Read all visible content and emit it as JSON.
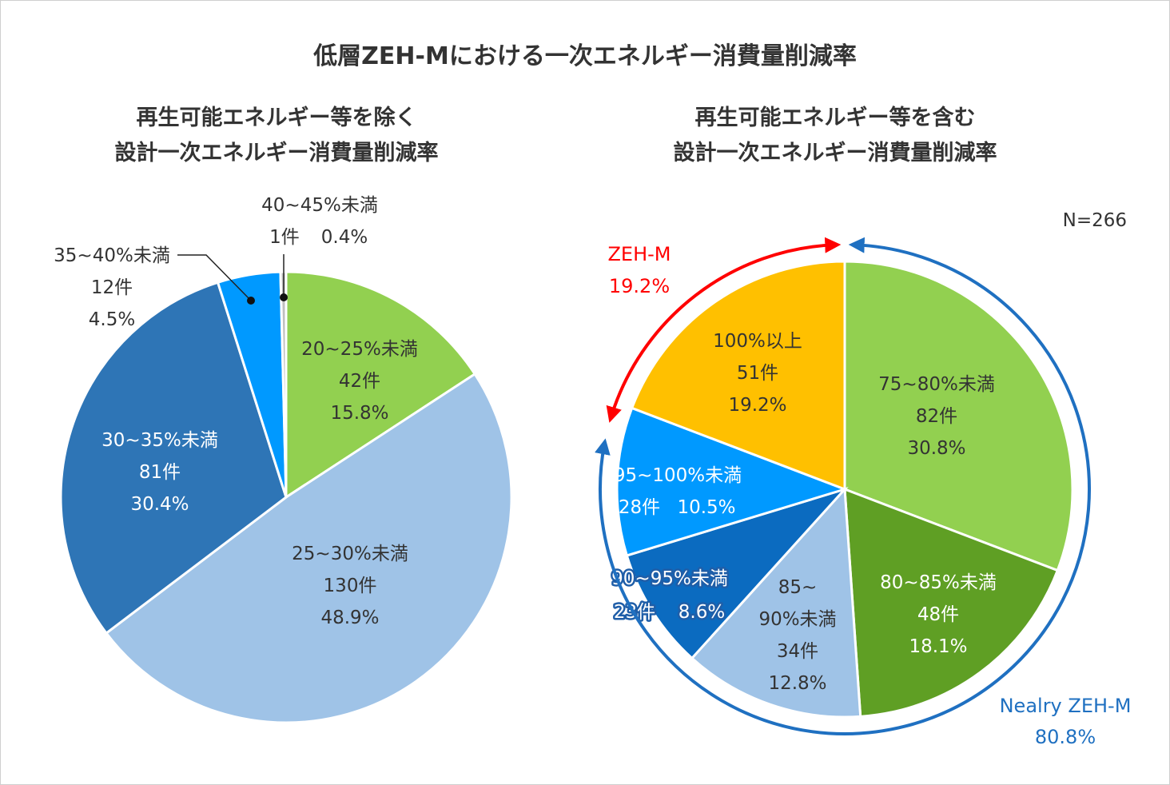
{
  "title": "低層ZEH-Mにおける一次エネルギー消費量削減率",
  "note": "N=266",
  "colors": {
    "green_light": "#92d050",
    "blue_light": "#9fc3e7",
    "blue_mid": "#2e75b6",
    "blue_bright": "#0099ff",
    "gray": "#bfbfbf",
    "orange": "#ffc000",
    "green_dark": "#5f9f24",
    "blue_dark": "#0b6bc0",
    "red": "#ff0000",
    "accent_blue": "#1f70c1"
  },
  "chart_data": [
    {
      "type": "pie",
      "subtitle_lines": [
        "再生可能エネルギー等を除く",
        "設計一次エネルギー消費量削減率"
      ],
      "slices": [
        {
          "label": "20~25%未満",
          "count_label": "42件",
          "pct_label": "15.8%",
          "value": 15.8,
          "color": "#92d050"
        },
        {
          "label": "25~30%未満",
          "count_label": "130件",
          "pct_label": "48.9%",
          "value": 48.9,
          "color": "#9fc3e7"
        },
        {
          "label": "30~35%未満",
          "count_label": "81件",
          "pct_label": "30.4%",
          "value": 30.4,
          "color": "#2e75b6"
        },
        {
          "label": "35~40%未満",
          "count_label": "12件",
          "pct_label": "4.5%",
          "value": 4.5,
          "color": "#0099ff"
        },
        {
          "label": "40~45%未満",
          "count_label": "1件",
          "pct_label": "0.4%",
          "value": 0.4,
          "color": "#bfbfbf"
        }
      ]
    },
    {
      "type": "pie",
      "subtitle_lines": [
        "再生可能エネルギー等を含む",
        "設計一次エネルギー消費量削減率"
      ],
      "slices": [
        {
          "label": "75~80%未満",
          "count_label": "82件",
          "pct_label": "30.8%",
          "value": 30.8,
          "color": "#92d050"
        },
        {
          "label": "80~85%未満",
          "count_label": "48件",
          "pct_label": "18.1%",
          "value": 18.1,
          "color": "#5f9f24"
        },
        {
          "label": "85~90%未満",
          "label_lines": [
            "85~",
            "90%未満"
          ],
          "count_label": "34件",
          "pct_label": "12.8%",
          "value": 12.8,
          "color": "#9fc3e7"
        },
        {
          "label": "90~95%未満",
          "count_label": "23件",
          "pct_label": "8.6%",
          "value": 8.6,
          "color": "#0b6bc0"
        },
        {
          "label": "95~100%未満",
          "count_label": "28件",
          "pct_label": "10.5%",
          "value": 10.5,
          "color": "#0099ff"
        },
        {
          "label": "100%以上",
          "count_label": "51件",
          "pct_label": "19.2%",
          "value": 19.2,
          "color": "#ffc000"
        }
      ],
      "annotations": {
        "zeh_m": {
          "label": "ZEH-M",
          "value": "19.2%"
        },
        "nearly_zeh_m": {
          "label": "Nealry ZEH-M",
          "value": "80.8%"
        }
      }
    }
  ]
}
